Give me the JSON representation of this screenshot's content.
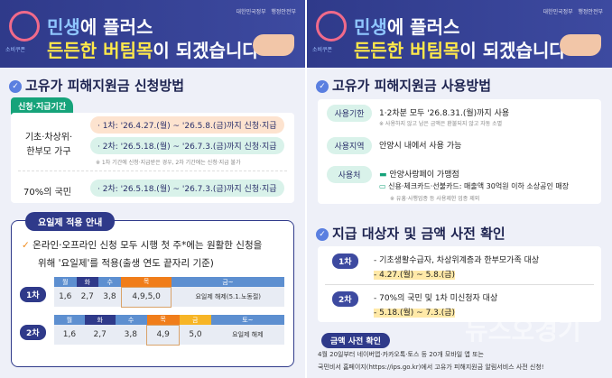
{
  "header": {
    "logo_text": "소비쿠폰",
    "line1_a": "민생",
    "line1_b": "에 플러스",
    "line2_a": "든든한 버팀목",
    "line2_b": "이 되겠습니다",
    "gov1": "대한민국정부",
    "gov2": "행정안전부"
  },
  "left": {
    "title": "고유가 피해지원금 신청방법",
    "period_tag": "신청·지급기간",
    "group1": "기초·차상위·한부모 가구",
    "g1_r1": "· 1차: '26.4.27.(월) ~ '26.5.8.(금)까지 신청·지급",
    "g1_r2": "· 2차: '26.5.18.(월) ~ '26.7.3.(금)까지 신청·지급",
    "g1_note": "※ 1차 기간에 신청·지급받은 경우, 2차 기간에는 신청·지급 불가",
    "group2": "70%의 국민",
    "g2_r1": "· 2차: '26.5.18.(월) ~ '26.7.3.(금)까지 신청·지급",
    "yo_tag": "요일제 적용 안내",
    "yo_text1": "온라인·오프라인 신청 모두 시행 첫 주*에는 원활한 신청을",
    "yo_text2": "위해 '요일제'를 적용(출생 연도 끝자리 기준)",
    "round1": "1차",
    "round2": "2차",
    "t1_head": [
      "월",
      "화",
      "수",
      "목",
      "금~"
    ],
    "t1_vals": [
      "1,6",
      "2,7",
      "3,8",
      "4,9,5,0",
      "요일제 해제(5.1.노동절)"
    ],
    "t2_head": [
      "월",
      "화",
      "수",
      "목",
      "금",
      "토~"
    ],
    "t2_vals": [
      "1,6",
      "2,7",
      "3,8",
      "4,9",
      "5,0",
      "요일제 해제"
    ]
  },
  "right": {
    "title": "고유가 피해지원금 사용방법",
    "rows": [
      {
        "label": "사용기한",
        "text": "1·2차분 모두 '26.8.31.(월)까지 사용",
        "note": "※ 사용하지 않고 남은 금액은 환불되지 않고 자동 소멸"
      },
      {
        "label": "사용지역",
        "text": "안양시 내에서 사용 가능"
      },
      {
        "label": "사용처",
        "text": "안양사랑페이 가맹점",
        "text2": "신용·체크카드·선불카드: 매출액 30억원 이하 소상공인 매장",
        "note": "※ 유흥·사행업종 등 사용제한 업종 제외"
      }
    ],
    "title2": "지급 대상자 및 금액 사전 확인",
    "r1_label": "1차",
    "r1_text": "- 기초생활수급자, 차상위계층과 한부모가족 대상",
    "r1_date": "- 4.27.(월) ~ 5.8.(금)",
    "r2_label": "2차",
    "r2_text": "- 70%의 국민 및 1차 미신청자 대상",
    "r2_date": "- 5.18.(월) ~ 7.3.(금)",
    "pre_tag": "금액 사전 확인",
    "pre_text1": "4월 20일부터 네이버앱·카카오톡·토스 등 20개 모바일 앱 또는",
    "pre_text2": "국민비서 홈페이지(https://ips.go.kr)에서 고유가 피해지원금 알림서비스 사전 신청!",
    "watermark": "뉴스오경기"
  }
}
